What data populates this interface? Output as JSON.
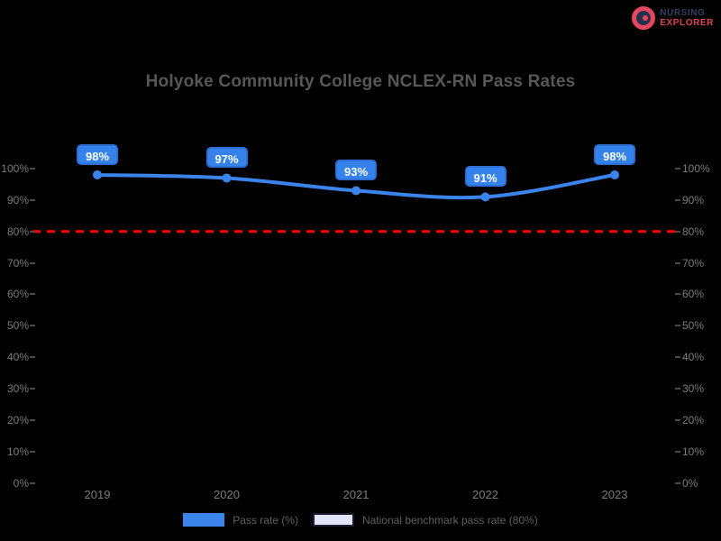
{
  "page": {
    "background": "#000000"
  },
  "logo": {
    "line1": "NURSING",
    "line2": "EXPLORER",
    "icon": "nursing-explorer-logo-icon",
    "line1_color": "#333E63",
    "line2_color": "#DC4255",
    "icon_color": "#E5485E"
  },
  "chart_data": {
    "type": "line",
    "title": "Holyoke Community College NCLEX-RN Pass Rates",
    "title_color": "#575757",
    "background": "#000000",
    "categories": [
      "2019",
      "2020",
      "2021",
      "2022",
      "2023"
    ],
    "series": [
      {
        "name": "Pass rate (%)",
        "type": "line",
        "values": [
          98,
          97,
          93,
          91,
          98
        ],
        "point_labels": [
          "98%",
          "97%",
          "93%",
          "91%",
          "98%"
        ],
        "color": "#3B84EC",
        "point_label_fill": "#3583EA",
        "point_label_border": "#2D6FD6",
        "point_label_text_color": "#FFFFFF"
      },
      {
        "name": "National benchmark pass rate (80%)",
        "type": "horizontal-dashed-line",
        "value": 80,
        "color": "#FF0000",
        "swatch_fill": "#E4E4F8",
        "swatch_border": "#1C1C30"
      }
    ],
    "xlabel": "",
    "ylabel": "",
    "ylim": [
      0,
      100
    ],
    "ytick_step": 10,
    "yticks": [
      "100%",
      "90%",
      "80%",
      "70%",
      "60%",
      "50%",
      "40%",
      "30%",
      "20%",
      "10%",
      "0%"
    ],
    "axis_text_color": "#7b7b7b",
    "grid": false,
    "legend_position": "bottom",
    "legend_text_color": "#5f5f5f"
  }
}
